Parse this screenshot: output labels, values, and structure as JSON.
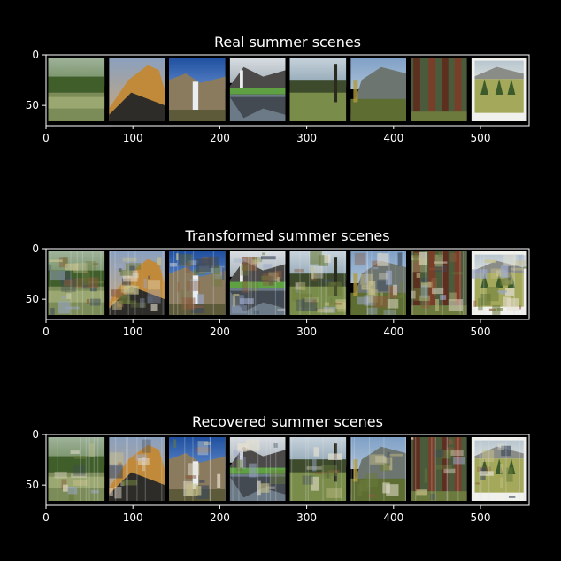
{
  "chart_data": [
    {
      "type": "image_strip",
      "title": "Real summer scenes",
      "xticks": [
        0,
        100,
        200,
        300,
        400,
        500
      ],
      "yticks": [
        0,
        50
      ],
      "xlim": [
        0,
        556
      ],
      "ylim": [
        70,
        0
      ],
      "grid": false,
      "tiles": [
        {
          "start": 0,
          "end": 70,
          "scene": "lake-meadow"
        },
        {
          "start": 70,
          "end": 139,
          "scene": "half-dome-sunset"
        },
        {
          "start": 139,
          "end": 209,
          "scene": "waterfall-blue-sky"
        },
        {
          "start": 209,
          "end": 278,
          "scene": "waterfall-reflection"
        },
        {
          "start": 278,
          "end": 348,
          "scene": "meadow-trees"
        },
        {
          "start": 348,
          "end": 417,
          "scene": "valley-cliffs"
        },
        {
          "start": 417,
          "end": 487,
          "scene": "redwood-trunks"
        },
        {
          "start": 487,
          "end": 556,
          "scene": "pine-field-photo"
        }
      ]
    },
    {
      "type": "image_strip",
      "title": "Transformed summer scenes",
      "xticks": [
        0,
        100,
        200,
        300,
        400,
        500
      ],
      "yticks": [
        0,
        50
      ],
      "xlim": [
        0,
        556
      ],
      "ylim": [
        70,
        0
      ],
      "grid": false,
      "tiles": [
        {
          "start": 0,
          "end": 70,
          "scene": "lake-meadow"
        },
        {
          "start": 70,
          "end": 139,
          "scene": "half-dome-sunset"
        },
        {
          "start": 139,
          "end": 209,
          "scene": "waterfall-blue-sky"
        },
        {
          "start": 209,
          "end": 278,
          "scene": "waterfall-reflection"
        },
        {
          "start": 278,
          "end": 348,
          "scene": "meadow-trees"
        },
        {
          "start": 348,
          "end": 417,
          "scene": "valley-cliffs"
        },
        {
          "start": 417,
          "end": 487,
          "scene": "redwood-trunks"
        },
        {
          "start": 487,
          "end": 556,
          "scene": "pine-field-photo"
        }
      ]
    },
    {
      "type": "image_strip",
      "title": "Recovered summer scenes",
      "xticks": [
        0,
        100,
        200,
        300,
        400,
        500
      ],
      "yticks": [
        0,
        50
      ],
      "xlim": [
        0,
        556
      ],
      "ylim": [
        70,
        0
      ],
      "grid": false,
      "tiles": [
        {
          "start": 0,
          "end": 70,
          "scene": "lake-meadow"
        },
        {
          "start": 70,
          "end": 139,
          "scene": "half-dome-sunset"
        },
        {
          "start": 139,
          "end": 209,
          "scene": "waterfall-blue-sky"
        },
        {
          "start": 209,
          "end": 278,
          "scene": "waterfall-reflection"
        },
        {
          "start": 278,
          "end": 348,
          "scene": "meadow-trees"
        },
        {
          "start": 348,
          "end": 417,
          "scene": "valley-cliffs"
        },
        {
          "start": 417,
          "end": 487,
          "scene": "redwood-trunks"
        },
        {
          "start": 487,
          "end": 556,
          "scene": "pine-field-photo"
        }
      ]
    }
  ],
  "colors": {
    "background": "#000000",
    "axes": "#ffffff",
    "text": "#ffffff"
  }
}
